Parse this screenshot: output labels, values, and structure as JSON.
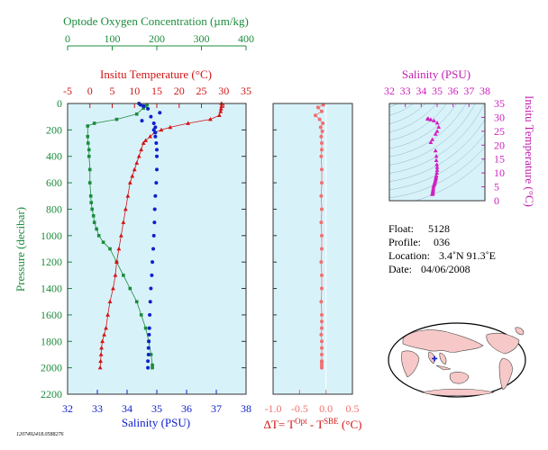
{
  "colors": {
    "plot_bg": "#d8f2fa",
    "oxygen": "#1c8c3c",
    "temperature": "#d21414",
    "salinity": "#1020cc",
    "delta_t": "#f07070",
    "ts": "#d020c0",
    "ocean": "#ffffff",
    "land": "#f7c8c8"
  },
  "chart_data": [
    {
      "type": "line",
      "panel": "profiles",
      "ylabel": "Pressure (decibar)",
      "ylim": [
        2200,
        0
      ],
      "yticks": [
        "0",
        "200",
        "400",
        "600",
        "800",
        "1000",
        "1200",
        "1400",
        "1600",
        "1800",
        "2000",
        "2200"
      ],
      "axes": [
        {
          "label": "Optode Oxygen Concentration (µm/kg)",
          "range": [
            0,
            400
          ],
          "ticks": [
            "0",
            "100",
            "200",
            "300",
            "400"
          ]
        },
        {
          "label": "Insitu Temperature (°C)",
          "range": [
            -5,
            35
          ],
          "ticks": [
            "-5",
            "0",
            "5",
            "10",
            "15",
            "20",
            "25",
            "30",
            "35"
          ]
        },
        {
          "label": "Salinity (PSU)",
          "range": [
            32,
            38
          ],
          "ticks": [
            "32",
            "33",
            "34",
            "35",
            "36",
            "37",
            "38"
          ]
        }
      ],
      "series": [
        {
          "key": "oxygen",
          "marker": "square",
          "x": [
            178,
            175,
            170,
            155,
            110,
            60,
            45,
            45,
            46,
            48,
            48,
            50,
            50,
            52,
            53,
            55,
            58,
            60,
            65,
            70,
            80,
            95,
            110,
            125,
            140,
            155,
            165,
            175,
            182,
            187,
            190,
            190
          ],
          "y": [
            10,
            20,
            35,
            80,
            120,
            150,
            170,
            250,
            300,
            350,
            400,
            500,
            600,
            700,
            750,
            800,
            850,
            900,
            950,
            1000,
            1050,
            1100,
            1200,
            1300,
            1400,
            1500,
            1600,
            1700,
            1800,
            1900,
            1980,
            2000
          ]
        },
        {
          "key": "temperature",
          "marker": "triangle",
          "x": [
            29.5,
            29.5,
            29.4,
            29.3,
            29.0,
            27.0,
            22.0,
            18.0,
            16.0,
            14.5,
            13.5,
            12.5,
            12.0,
            11.5,
            11.0,
            10.5,
            10.0,
            9.5,
            9.0,
            8.5,
            8.0,
            7.5,
            7.0,
            6.5,
            6.0,
            5.7,
            5.2,
            4.5,
            4.0,
            3.6,
            3.2,
            2.8,
            2.6,
            2.5,
            2.4,
            2.3
          ],
          "y": [
            0,
            20,
            40,
            60,
            90,
            120,
            150,
            180,
            200,
            220,
            250,
            280,
            300,
            350,
            400,
            450,
            500,
            550,
            600,
            700,
            800,
            900,
            1000,
            1100,
            1200,
            1300,
            1400,
            1500,
            1600,
            1700,
            1750,
            1800,
            1850,
            1900,
            1950,
            2000
          ]
        },
        {
          "key": "salinity",
          "marker": "circle",
          "x": [
            34.4,
            34.45,
            34.55,
            34.7,
            35.1,
            34.8,
            34.5,
            34.9,
            34.95,
            34.9,
            34.95,
            34.95,
            34.98,
            35.0,
            35.0,
            35.0,
            34.98,
            34.95,
            34.93,
            34.92,
            34.9,
            34.88,
            34.85,
            34.83,
            34.8,
            34.78,
            34.76,
            34.75,
            34.74,
            34.73,
            34.72,
            34.72,
            34.7,
            34.7
          ],
          "y": [
            0,
            10,
            20,
            40,
            70,
            100,
            130,
            150,
            180,
            200,
            220,
            250,
            300,
            350,
            400,
            500,
            600,
            700,
            800,
            900,
            1000,
            1100,
            1200,
            1300,
            1400,
            1500,
            1600,
            1700,
            1750,
            1800,
            1850,
            1900,
            1950,
            2000
          ]
        }
      ]
    },
    {
      "type": "line",
      "panel": "delta_t",
      "xlabel": "ΔT= T",
      "xlabel_sup1": "Opt",
      "xlabel_mid": " - T",
      "xlabel_sup2": "SBE",
      "xlabel_tail": " (°C)",
      "xlim": [
        -1.0,
        0.5
      ],
      "xticks": [
        "-1.0",
        "-0.5",
        "0.0",
        "0.5"
      ],
      "ylim": [
        2200,
        0
      ],
      "series": [
        {
          "key": "delta_t",
          "marker": "circle",
          "x": [
            -0.05,
            -0.15,
            -0.08,
            -0.2,
            -0.12,
            -0.06,
            -0.1,
            -0.07,
            -0.09,
            -0.08,
            -0.08,
            -0.09,
            -0.08,
            -0.08,
            -0.09,
            -0.08,
            -0.09,
            -0.08,
            -0.08,
            -0.09,
            -0.08,
            -0.08,
            -0.09,
            -0.08,
            -0.08,
            -0.08,
            -0.09,
            -0.08,
            -0.08,
            -0.08,
            -0.08,
            -0.08,
            -0.08,
            -0.08
          ],
          "y": [
            10,
            30,
            60,
            90,
            120,
            150,
            180,
            210,
            250,
            300,
            350,
            400,
            500,
            600,
            700,
            800,
            900,
            1000,
            1100,
            1200,
            1300,
            1400,
            1500,
            1600,
            1650,
            1700,
            1750,
            1800,
            1850,
            1900,
            1950,
            1980,
            2000,
            1960
          ]
        }
      ]
    },
    {
      "type": "scatter",
      "panel": "ts",
      "xlabel": "Salinity (PSU)",
      "ylabel": "Insitu Temperature (°C)",
      "xlim": [
        32,
        38
      ],
      "ylim": [
        0,
        35
      ],
      "xticks": [
        "32",
        "33",
        "34",
        "35",
        "36",
        "37",
        "38"
      ],
      "yticks": [
        "0",
        "5",
        "10",
        "15",
        "20",
        "25",
        "30",
        "35"
      ],
      "points": [
        [
          34.4,
          29.5
        ],
        [
          34.45,
          29.4
        ],
        [
          34.6,
          29.2
        ],
        [
          34.8,
          28.8
        ],
        [
          35.0,
          28.0
        ],
        [
          35.1,
          26.5
        ],
        [
          35.0,
          25.0
        ],
        [
          34.9,
          24.0
        ],
        [
          34.7,
          22.0
        ],
        [
          34.6,
          21.0
        ],
        [
          34.9,
          18.0
        ],
        [
          34.95,
          16.0
        ],
        [
          34.95,
          14.5
        ],
        [
          34.98,
          13.0
        ],
        [
          35.0,
          12.0
        ],
        [
          35.0,
          11.0
        ],
        [
          34.98,
          10.0
        ],
        [
          34.95,
          9.0
        ],
        [
          34.93,
          8.5
        ],
        [
          34.92,
          8.0
        ],
        [
          34.9,
          7.5
        ],
        [
          34.88,
          7.0
        ],
        [
          34.85,
          6.5
        ],
        [
          34.83,
          6.0
        ],
        [
          34.8,
          5.7
        ],
        [
          34.78,
          5.2
        ],
        [
          34.76,
          4.5
        ],
        [
          34.75,
          4.0
        ],
        [
          34.74,
          3.6
        ],
        [
          34.73,
          3.2
        ],
        [
          34.72,
          2.8
        ],
        [
          34.72,
          2.6
        ],
        [
          34.7,
          2.5
        ],
        [
          34.7,
          2.3
        ]
      ]
    }
  ],
  "info": {
    "float_label": "Float:",
    "float_value": "5128",
    "profile_label": "Profile:",
    "profile_value": "036",
    "location_label": "Location:",
    "location_value": "3.4˚N  91.3˚E",
    "date_label": "Date:",
    "date_value": "04/06/2008"
  },
  "footer_id": "1207492418.0588276",
  "map": {
    "marker_lat": 3.4,
    "marker_lon": 91.3
  }
}
